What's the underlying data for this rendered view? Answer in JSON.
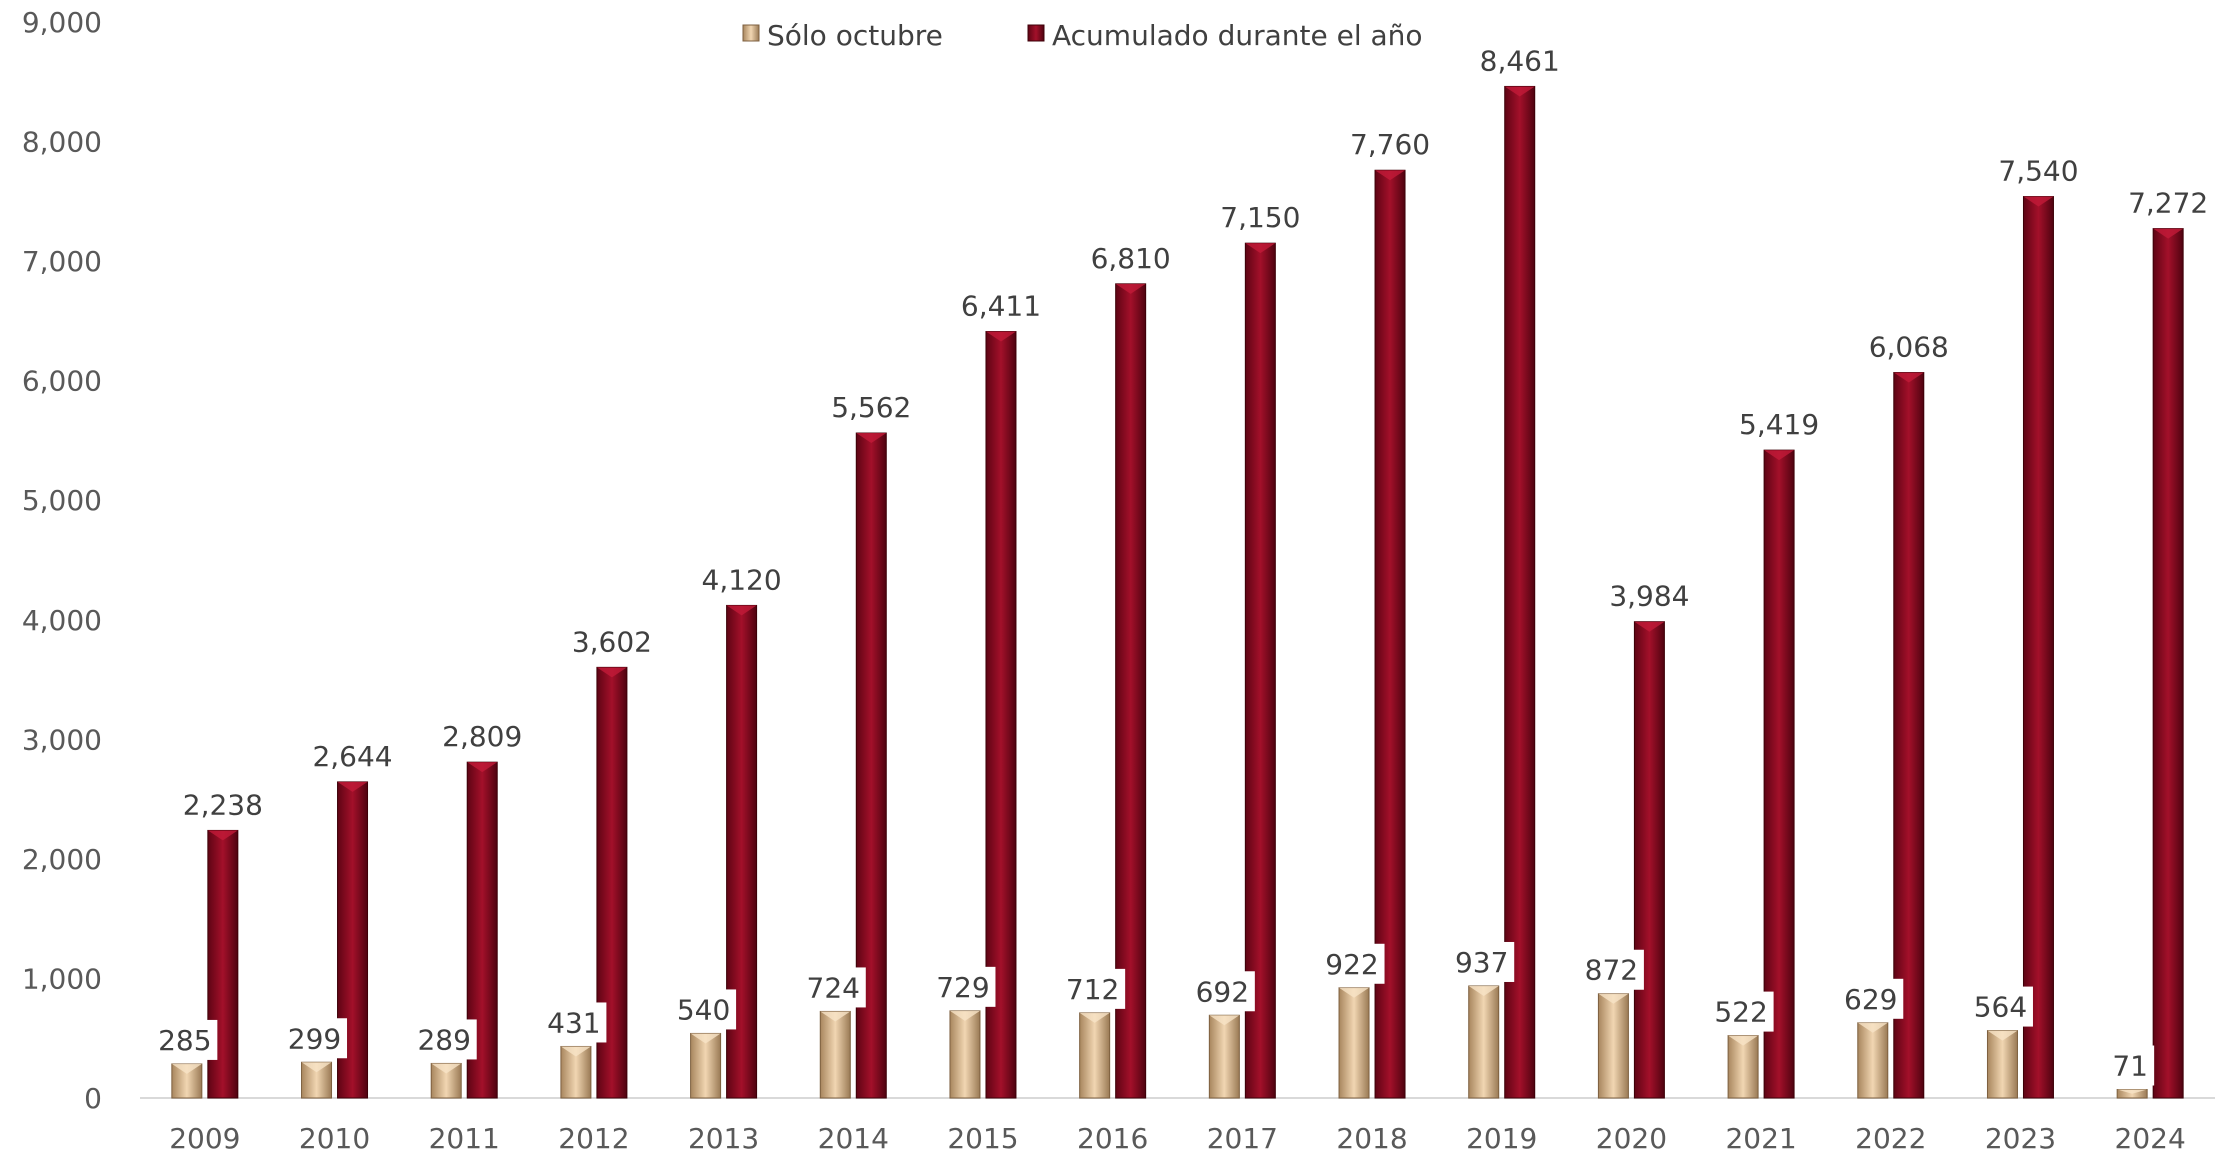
{
  "chart_data": {
    "type": "bar",
    "title": "",
    "xlabel": "",
    "ylabel": "",
    "categories": [
      "2009",
      "2010",
      "2011",
      "2012",
      "2013",
      "2014",
      "2015",
      "2016",
      "2017",
      "2018",
      "2019",
      "2020",
      "2021",
      "2022",
      "2023",
      "2024"
    ],
    "series": [
      {
        "name": "Sólo octubre",
        "color": "#d9b48c",
        "values": [
          285,
          299,
          289,
          431,
          540,
          724,
          729,
          712,
          692,
          922,
          937,
          872,
          522,
          629,
          564,
          71
        ],
        "labels": [
          "285",
          "299",
          "289",
          "431",
          "540",
          "724",
          "729",
          "712",
          "692",
          "922",
          "937",
          "872",
          "522",
          "629",
          "564",
          "71"
        ]
      },
      {
        "name": "Acumulado durante el año",
        "color": "#8b0a1f",
        "values": [
          2238,
          2644,
          2809,
          3602,
          4120,
          5562,
          6411,
          6810,
          7150,
          7760,
          8461,
          3984,
          5419,
          6068,
          7540,
          7272
        ],
        "labels": [
          "2,238",
          "2,644",
          "2,809",
          "3,602",
          "4,120",
          "5,562",
          "6,411",
          "6,810",
          "7,150",
          "7,760",
          "8,461",
          "3,984",
          "5,419",
          "6,068",
          "7,540",
          "7,272"
        ]
      }
    ],
    "ylim": [
      0,
      9000
    ],
    "yticks": [
      0,
      1000,
      2000,
      3000,
      4000,
      5000,
      6000,
      7000,
      8000,
      9000
    ],
    "ytick_labels": [
      "0",
      "1,000",
      "2,000",
      "3,000",
      "4,000",
      "5,000",
      "6,000",
      "7,000",
      "8,000",
      "9,000"
    ],
    "grid": false,
    "legend_position": "top-center"
  }
}
